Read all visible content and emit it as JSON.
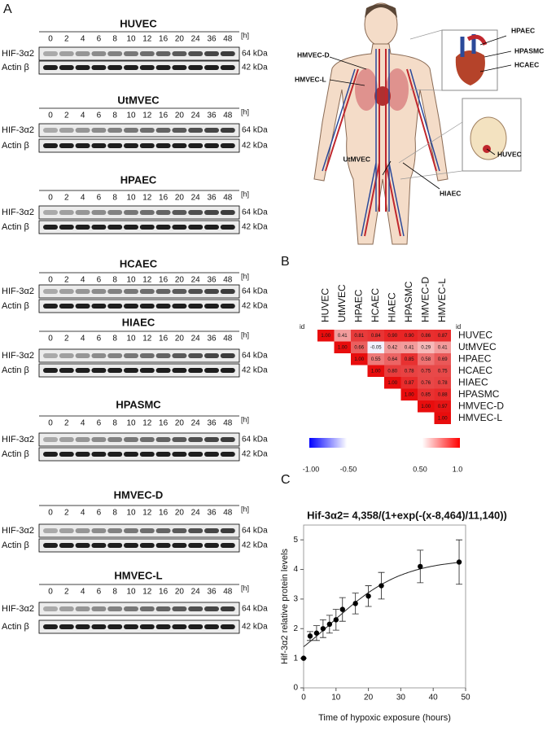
{
  "panels": [
    "A",
    "B",
    "C"
  ],
  "blots": [
    {
      "title": "HUVEC",
      "times": [
        0,
        2,
        4,
        6,
        8,
        10,
        12,
        16,
        20,
        24,
        36,
        48
      ],
      "unit": "[h]",
      "rows": [
        {
          "label": "HIF-3α2",
          "size": "64 kDa"
        },
        {
          "label": "Actin β",
          "size": "42 kDa"
        }
      ]
    },
    {
      "title": "UtMVEC",
      "times": [
        0,
        2,
        4,
        6,
        8,
        10,
        12,
        16,
        20,
        24,
        36,
        48
      ],
      "unit": "[h]",
      "rows": [
        {
          "label": "HIF-3α2",
          "size": "64 kDa"
        },
        {
          "label": "Actin β",
          "size": "42 kDa"
        }
      ]
    },
    {
      "title": "HPAEC",
      "times": [
        0,
        2,
        4,
        6,
        8,
        10,
        12,
        16,
        20,
        24,
        36,
        48
      ],
      "unit": "[h]",
      "rows": [
        {
          "label": "HIF-3α2",
          "size": "64 kDa"
        },
        {
          "label": "Actin β",
          "size": "42 kDa"
        }
      ]
    },
    {
      "title": "HCAEC",
      "times": [
        0,
        2,
        4,
        6,
        8,
        10,
        12,
        16,
        20,
        24,
        36,
        48
      ],
      "unit": "[h]",
      "rows": [
        {
          "label": "HIF-3α2",
          "size": "64 kDa"
        },
        {
          "label": "Actin β",
          "size": "42 kDa"
        }
      ]
    },
    {
      "title": "HIAEC",
      "times": [
        0,
        2,
        4,
        6,
        8,
        10,
        12,
        16,
        20,
        24,
        36,
        48
      ],
      "unit": "[h]",
      "rows": [
        {
          "label": "HIF-3α2",
          "size": "64 kDa"
        },
        {
          "label": "Actin β",
          "size": "42 kDa"
        }
      ]
    },
    {
      "title": "HPASMC",
      "times": [
        0,
        2,
        4,
        6,
        8,
        10,
        12,
        16,
        20,
        24,
        36,
        48
      ],
      "unit": "[h]",
      "rows": [
        {
          "label": "HIF-3α2",
          "size": "64 kDa"
        },
        {
          "label": "Actin β",
          "size": "42 kDa"
        }
      ]
    },
    {
      "title": "HMVEC-D",
      "times": [
        0,
        2,
        4,
        6,
        8,
        10,
        12,
        16,
        20,
        24,
        36,
        48
      ],
      "unit": "[h]",
      "rows": [
        {
          "label": "HIF-3α2",
          "size": "64 kDa"
        },
        {
          "label": "Actin β",
          "size": "42 kDa"
        }
      ]
    },
    {
      "title": "HMVEC-L",
      "times": [
        0,
        2,
        4,
        6,
        8,
        10,
        12,
        16,
        20,
        24,
        36,
        48
      ],
      "unit": "[h]",
      "rows": [
        {
          "label": "HIF-3α2",
          "size": "64 kDa"
        },
        {
          "label": "Actin β",
          "size": "42 kDa"
        }
      ]
    }
  ],
  "body_labels": [
    "HPAEC",
    "HPASMC",
    "HCAEC",
    "HMVEC-D",
    "HMVEC-L",
    "HUVEC",
    "UtMVEC",
    "HIAEC"
  ],
  "correlation": {
    "id_labels": [
      "id",
      "id"
    ],
    "columns": [
      "HUVEC",
      "UtMVEC",
      "HPAEC",
      "HCAEC",
      "HIAEC",
      "HPASMC",
      "HMVEC-D",
      "HMVEC-L"
    ],
    "rows": [
      "HUVEC",
      "UtMVEC",
      "HPAEC",
      "HCAEC",
      "HIAEC",
      "HPASMC",
      "HMVEC-D",
      "HMVEC-L"
    ],
    "values": [
      [
        "1.00",
        "0.41",
        "0.81",
        "0.84",
        "0.90",
        "0.90",
        "0.86",
        "0.87"
      ],
      [
        "1.00",
        "0.66",
        "-0.05",
        "0.42",
        "0.41",
        "0.29",
        "0.41"
      ],
      [
        "1.00",
        "0.55",
        "0.64",
        "0.85",
        "0.58",
        "0.69"
      ],
      [
        "1.00",
        "0.80",
        "0.78",
        "0.75",
        "0.75"
      ],
      [
        "1.00",
        "0.87",
        "0.76",
        "0.78"
      ],
      [
        "1.00",
        "0.85",
        "0.88"
      ],
      [
        "1.00",
        "0.97"
      ],
      [
        "1.00"
      ]
    ],
    "scale_labels": [
      "-1.00",
      "-0.50",
      "0.50",
      "1.0"
    ]
  },
  "chart_data": {
    "type": "scatter",
    "title": "Hif-3α2= 4,358/(1+exp(-(x-8,464)/11,140))",
    "x_label": "Time of hypoxic exposure (hours)",
    "y_label": "Hif-3α2 relative protein levels",
    "x": [
      0,
      2,
      4,
      6,
      8,
      10,
      12,
      16,
      20,
      24,
      36,
      48
    ],
    "values": [
      1.0,
      1.75,
      1.85,
      2.0,
      2.15,
      2.3,
      2.65,
      2.85,
      3.1,
      3.45,
      4.1,
      4.25
    ],
    "errors": [
      0,
      0.15,
      0.25,
      0.3,
      0.3,
      0.35,
      0.4,
      0.35,
      0.35,
      0.45,
      0.55,
      0.75
    ],
    "fit": {
      "a": 4.358,
      "x0": 8.464,
      "s": 11.14
    },
    "color": "#000000",
    "xlim": [
      0,
      50
    ],
    "xticks": [
      0,
      10,
      20,
      30,
      40,
      50
    ],
    "ylim": [
      0,
      5.5
    ],
    "yticks": [
      0,
      1,
      2,
      3,
      4,
      5
    ]
  }
}
